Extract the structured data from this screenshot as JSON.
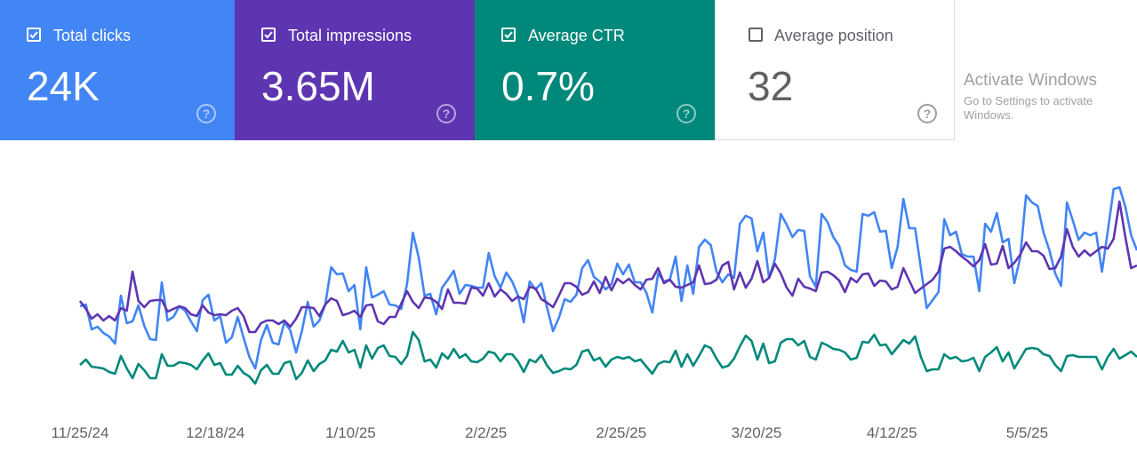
{
  "metrics": [
    {
      "label": "Total clicks",
      "value": "24K",
      "checked": true,
      "color": "#4285f4"
    },
    {
      "label": "Total impressions",
      "value": "3.65M",
      "checked": true,
      "color": "#5e35b1"
    },
    {
      "label": "Average CTR",
      "value": "0.7%",
      "checked": true,
      "color": "#00897b"
    },
    {
      "label": "Average position",
      "value": "32",
      "checked": false,
      "color": "#ffffff"
    }
  ],
  "help_icon": "?",
  "watermark": {
    "title": "Activate Windows",
    "subtitle": "Go to Settings to activate Windows."
  },
  "chart_data": {
    "type": "line",
    "title": "",
    "xlabel": "",
    "ylabel": "",
    "note": "values are relative index units (no y-axis shown)",
    "ylim": [
      0,
      290
    ],
    "x_tick_labels": [
      "11/25/24",
      "12/18/24",
      "1/10/25",
      "2/2/25",
      "2/25/25",
      "3/20/25",
      "4/12/25",
      "5/5/25"
    ],
    "series": [
      {
        "name": "Total clicks",
        "color": "#4285f4",
        "values": [
          105,
          107,
          79,
          82,
          75,
          71,
          63,
          117,
          86,
          88,
          106,
          83,
          68,
          67,
          132,
          89,
          93,
          105,
          100,
          88,
          77,
          112,
          118,
          89,
          94,
          64,
          70,
          93,
          70,
          48,
          35,
          67,
          84,
          64,
          62,
          87,
          78,
          53,
          77,
          110,
          82,
          89,
          107,
          149,
          141,
          142,
          122,
          129,
          79,
          149,
          115,
          118,
          122,
          107,
          106,
          102,
          130,
          188,
          160,
          117,
          119,
          96,
          126,
          135,
          145,
          119,
          129,
          128,
          126,
          126,
          165,
          139,
          126,
          143,
          133,
          117,
          87,
          133,
          124,
          131,
          103,
          77,
          92,
          113,
          110,
          118,
          148,
          157,
          138,
          133,
          124,
          130,
          153,
          141,
          152,
          132,
          132,
          120,
          98,
          142,
          133,
          135,
          161,
          111,
          151,
          119,
          172,
          180,
          174,
          144,
          132,
          141,
          137,
          198,
          207,
          204,
          167,
          188,
          137,
          158,
          209,
          197,
          183,
          191,
          190,
          139,
          127,
          209,
          200,
          183,
          173,
          151,
          146,
          144,
          209,
          207,
          211,
          189,
          190,
          148,
          172,
          226,
          193,
          193,
          148,
          103,
          112,
          121,
          203,
          185,
          189,
          164,
          161,
          161,
          122,
          198,
          189,
          210,
          177,
          181,
          131,
          160,
          230,
          222,
          218,
          188,
          168,
          142,
          128,
          222,
          202,
          180,
          188,
          185,
          188,
          144,
          190,
          237,
          239,
          217,
          185,
          168
        ]
      },
      {
        "name": "Total impressions",
        "color": "#5e35b1",
        "values": [
          111,
          102,
          91,
          96,
          89,
          94,
          89,
          103,
          100,
          144,
          111,
          104,
          111,
          112,
          112,
          99,
          102,
          105,
          103,
          96,
          94,
          106,
          98,
          95,
          96,
          95,
          100,
          103,
          94,
          76,
          76,
          86,
          89,
          89,
          85,
          89,
          82,
          91,
          104,
          104,
          103,
          94,
          107,
          114,
          111,
          95,
          97,
          100,
          93,
          106,
          107,
          88,
          85,
          93,
          93,
          108,
          122,
          110,
          103,
          115,
          114,
          110,
          102,
          124,
          109,
          109,
          108,
          126,
          125,
          117,
          131,
          116,
          124,
          119,
          111,
          116,
          113,
          127,
          125,
          113,
          109,
          104,
          117,
          131,
          131,
          127,
          118,
          121,
          133,
          120,
          138,
          123,
          136,
          131,
          136,
          129,
          124,
          135,
          136,
          148,
          131,
          135,
          127,
          126,
          129,
          132,
          151,
          130,
          131,
          135,
          151,
          155,
          124,
          143,
          126,
          136,
          156,
          132,
          137,
          153,
          142,
          126,
          117,
          136,
          127,
          125,
          122,
          143,
          144,
          140,
          134,
          121,
          137,
          132,
          141,
          142,
          128,
          134,
          133,
          124,
          127,
          148,
          134,
          120,
          125,
          130,
          135,
          144,
          170,
          172,
          167,
          161,
          156,
          150,
          157,
          175,
          152,
          153,
          173,
          148,
          154,
          163,
          177,
          167,
          167,
          162,
          147,
          148,
          161,
          192,
          172,
          161,
          168,
          162,
          167,
          172,
          170,
          181,
          223,
          183,
          148,
          151
        ]
      },
      {
        "name": "Average CTR",
        "color": "#00897b",
        "values": [
          39,
          45,
          37,
          36,
          35,
          31,
          29,
          49,
          35,
          24,
          40,
          33,
          24,
          24,
          51,
          38,
          38,
          42,
          41,
          39,
          34,
          44,
          52,
          39,
          41,
          28,
          28,
          38,
          30,
          26,
          18,
          33,
          39,
          29,
          29,
          41,
          43,
          23,
          30,
          44,
          32,
          40,
          44,
          56,
          54,
          66,
          53,
          56,
          36,
          61,
          46,
          58,
          61,
          49,
          48,
          40,
          49,
          76,
          67,
          43,
          45,
          36,
          52,
          46,
          57,
          47,
          51,
          43,
          42,
          46,
          54,
          52,
          43,
          51,
          51,
          43,
          31,
          45,
          42,
          50,
          38,
          30,
          32,
          35,
          34,
          39,
          54,
          56,
          44,
          47,
          37,
          45,
          48,
          46,
          48,
          43,
          45,
          37,
          29,
          40,
          43,
          42,
          55,
          37,
          51,
          38,
          49,
          61,
          58,
          46,
          36,
          38,
          46,
          60,
          72,
          66,
          45,
          63,
          41,
          43,
          64,
          68,
          68,
          61,
          66,
          48,
          45,
          64,
          61,
          57,
          56,
          53,
          45,
          47,
          65,
          64,
          73,
          61,
          62,
          51,
          59,
          67,
          63,
          71,
          48,
          32,
          34,
          34,
          51,
          46,
          48,
          43,
          44,
          47,
          32,
          48,
          53,
          59,
          43,
          53,
          35,
          46,
          57,
          58,
          57,
          51,
          49,
          39,
          32,
          49,
          50,
          48,
          48,
          48,
          48,
          34,
          48,
          57,
          46,
          50,
          54,
          48
        ]
      }
    ]
  }
}
